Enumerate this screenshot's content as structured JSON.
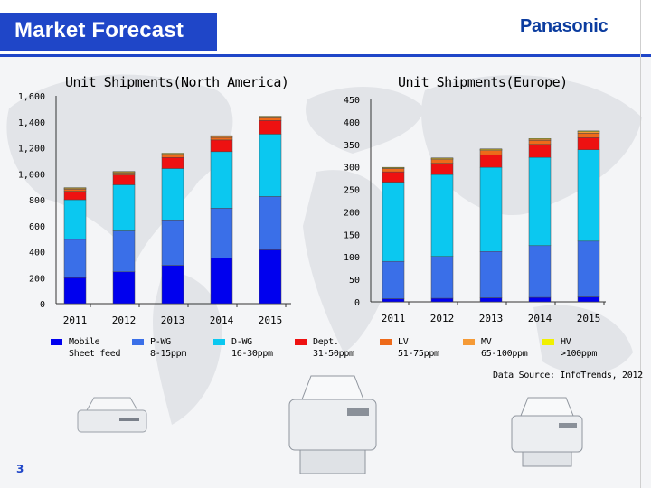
{
  "slide": {
    "title": "Market Forecast",
    "brand": "Panasonic",
    "source": "Data Source: InfoTrends, 2012",
    "page_number": "3"
  },
  "colors": {
    "title_bar": "#1f46c8",
    "brand": "#0b3c9f",
    "series": [
      "#0000ee",
      "#3a6fe8",
      "#0bc8f0",
      "#ee1111",
      "#ee6a1a",
      "#f59a36",
      "#f0f000"
    ]
  },
  "legend": [
    {
      "name": "Mobile\nSheet feed"
    },
    {
      "name": "P-WG\n8-15ppm"
    },
    {
      "name": "D-WG\n16-30ppm"
    },
    {
      "name": "Dept.\n31-50ppm"
    },
    {
      "name": "LV\n51-75ppm"
    },
    {
      "name": "MV\n65-100ppm"
    },
    {
      "name": "HV\n>100ppm"
    }
  ],
  "chart_data": [
    {
      "type": "bar",
      "stacked": true,
      "title": "Unit Shipments(North America)",
      "categories": [
        "2011",
        "2012",
        "2013",
        "2014",
        "2015"
      ],
      "ylim": [
        0,
        1600
      ],
      "yticks": [
        "0",
        "200",
        "400",
        "600",
        "800",
        "1,000",
        "1,200",
        "1,400",
        "1,600"
      ],
      "grid": false,
      "legend_position": "bottom",
      "series": [
        {
          "name": "Mobile Sheet feed",
          "values": [
            200,
            245,
            295,
            350,
            415
          ]
        },
        {
          "name": "P-WG 8-15ppm",
          "values": [
            295,
            315,
            350,
            385,
            410
          ]
        },
        {
          "name": "D-WG 16-30ppm",
          "values": [
            305,
            355,
            395,
            435,
            480
          ]
        },
        {
          "name": "Dept. 31-50ppm",
          "values": [
            65,
            75,
            85,
            90,
            105
          ]
        },
        {
          "name": "LV 51-75ppm",
          "values": [
            15,
            15,
            20,
            20,
            20
          ]
        },
        {
          "name": "MV 65-100ppm",
          "values": [
            10,
            10,
            10,
            10,
            10
          ]
        },
        {
          "name": "HV >100ppm",
          "values": [
            3,
            3,
            3,
            3,
            3
          ]
        }
      ]
    },
    {
      "type": "bar",
      "stacked": true,
      "title": "Unit Shipments(Europe)",
      "categories": [
        "2011",
        "2012",
        "2013",
        "2014",
        "2015"
      ],
      "ylim": [
        0,
        450
      ],
      "yticks": [
        "0",
        "50",
        "100",
        "150",
        "200",
        "250",
        "300",
        "350",
        "400",
        "450"
      ],
      "grid": false,
      "legend_position": "bottom",
      "series": [
        {
          "name": "Mobile Sheet feed",
          "values": [
            7,
            8,
            9,
            10,
            11
          ]
        },
        {
          "name": "P-WG 8-15ppm",
          "values": [
            83,
            93,
            103,
            115,
            124
          ]
        },
        {
          "name": "D-WG 16-30ppm",
          "values": [
            176,
            182,
            187,
            196,
            203
          ]
        },
        {
          "name": "Dept. 31-50ppm",
          "values": [
            23,
            25,
            28,
            29,
            27
          ]
        },
        {
          "name": "LV 51-75ppm",
          "values": [
            7,
            8,
            9,
            9,
            10
          ]
        },
        {
          "name": "MV 65-100ppm",
          "values": [
            2,
            3,
            3,
            3,
            4
          ]
        },
        {
          "name": "HV >100ppm",
          "values": [
            1,
            1,
            1,
            1,
            1
          ]
        }
      ]
    }
  ]
}
